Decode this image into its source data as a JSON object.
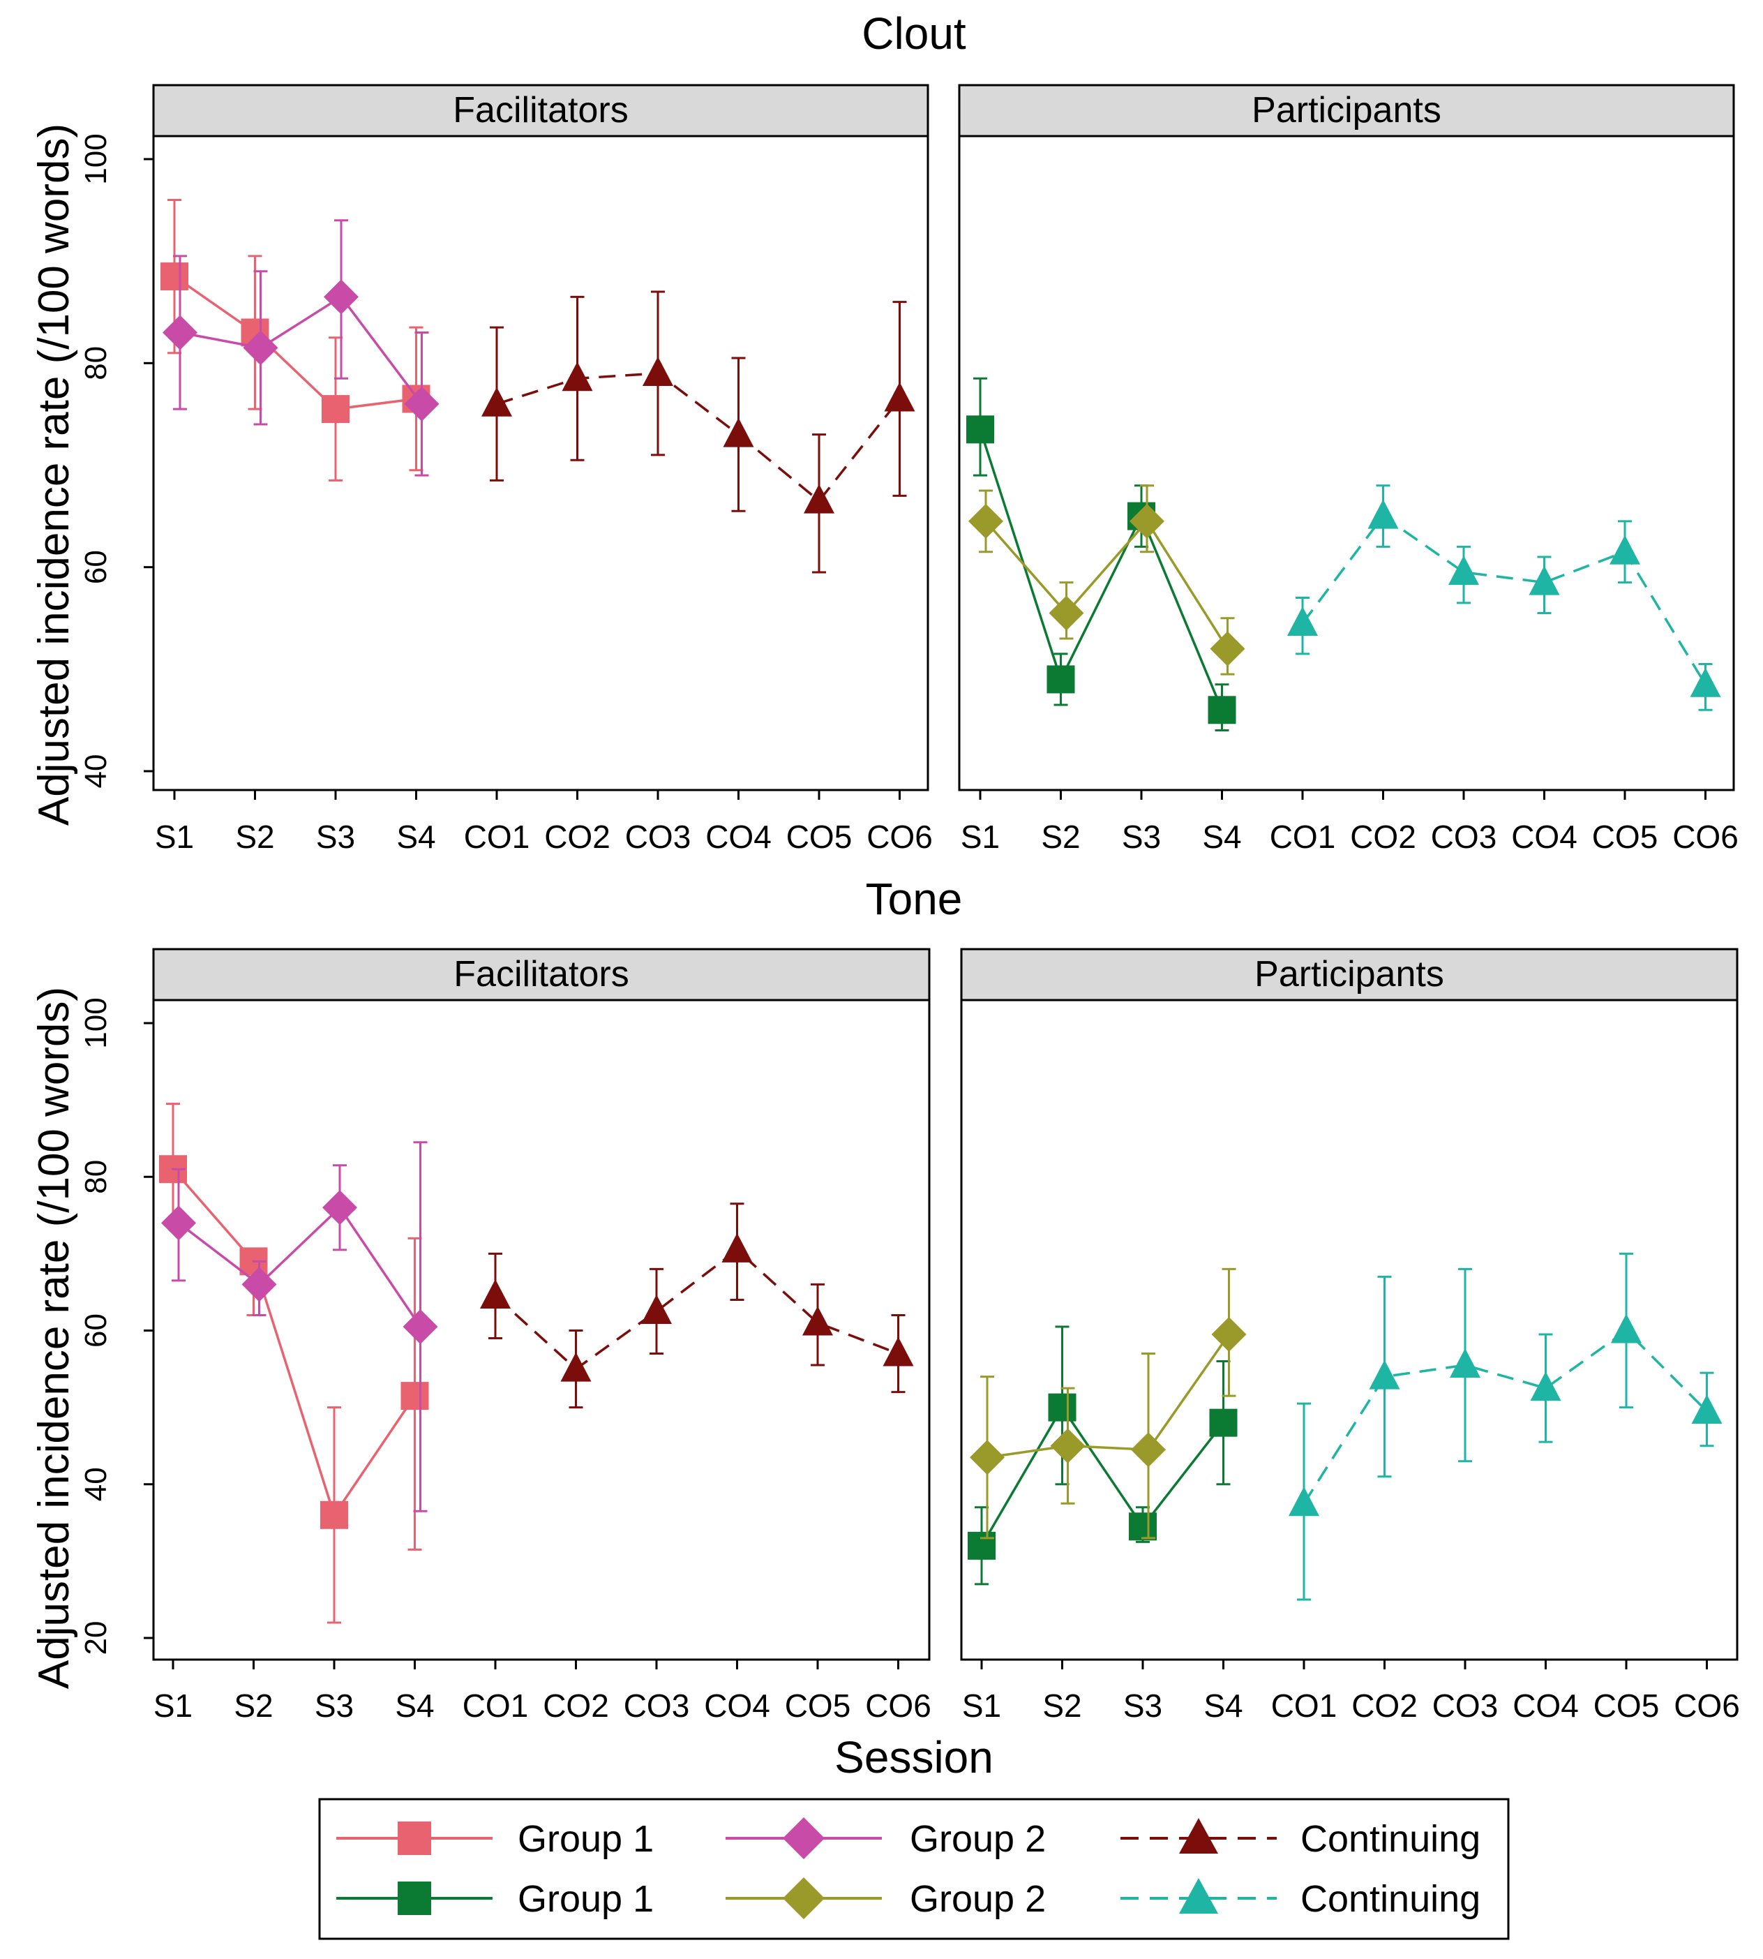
{
  "figure": {
    "xlabel": "Session",
    "ylabel": "Adjusted incidence rate (/100 words)"
  },
  "legend": {
    "items": [
      {
        "label": "Group 1",
        "color": "#E8636F",
        "marker": "square",
        "dash": false,
        "icon": "square-marker-icon"
      },
      {
        "label": "Group 2",
        "color": "#C94BA8",
        "marker": "diamond",
        "dash": false,
        "icon": "diamond-marker-icon"
      },
      {
        "label": "Continuing",
        "color": "#7B0E0A",
        "marker": "triangle",
        "dash": true,
        "icon": "triangle-marker-icon"
      },
      {
        "label": "Group 1",
        "color": "#0B7A33",
        "marker": "square",
        "dash": false,
        "icon": "square-marker-icon"
      },
      {
        "label": "Group 2",
        "color": "#9A9A2A",
        "marker": "diamond",
        "dash": false,
        "icon": "diamond-marker-icon"
      },
      {
        "label": "Continuing",
        "color": "#1FB5A4",
        "marker": "triangle",
        "dash": true,
        "icon": "triangle-marker-icon"
      }
    ]
  },
  "chart_data": [
    {
      "type": "line",
      "title": "Clout",
      "xlabel": "Session",
      "ylabel": "Adjusted incidence rate (/100 words)",
      "ylim": [
        40,
        100
      ],
      "yticks": [
        40,
        60,
        80,
        100
      ],
      "categories": [
        "S1",
        "S2",
        "S3",
        "S4",
        "CO1",
        "CO2",
        "CO3",
        "CO4",
        "CO5",
        "CO6"
      ],
      "panels": [
        {
          "label": "Facilitators",
          "series": [
            {
              "name": "Group 1",
              "color": "#E8636F",
              "marker": "square",
              "dash": false,
              "offset": 0,
              "x": [
                "S1",
                "S2",
                "S3",
                "S4"
              ],
              "y": [
                88.5,
                83,
                75.5,
                76.5
              ],
              "lo": [
                81,
                75.5,
                68.5,
                69.5
              ],
              "hi": [
                96,
                90.5,
                82.5,
                83.5
              ]
            },
            {
              "name": "Group 2",
              "color": "#C94BA8",
              "marker": "diamond",
              "dash": false,
              "offset": 8,
              "x": [
                "S1",
                "S2",
                "S3",
                "S4"
              ],
              "y": [
                83,
                81.5,
                86.5,
                76
              ],
              "lo": [
                75.5,
                74,
                78.5,
                69
              ],
              "hi": [
                90.5,
                89,
                94,
                83
              ]
            },
            {
              "name": "Continuing",
              "color": "#7B0E0A",
              "marker": "triangle",
              "dash": true,
              "offset": 0,
              "x": [
                "CO1",
                "CO2",
                "CO3",
                "CO4",
                "CO5",
                "CO6"
              ],
              "y": [
                76,
                78.5,
                79,
                73,
                66.5,
                76.5
              ],
              "lo": [
                68.5,
                70.5,
                71,
                65.5,
                59.5,
                67
              ],
              "hi": [
                83.5,
                86.5,
                87,
                80.5,
                73,
                86
              ]
            }
          ]
        },
        {
          "label": "Participants",
          "series": [
            {
              "name": "Group 1",
              "color": "#0B7A33",
              "marker": "square",
              "dash": false,
              "offset": 0,
              "x": [
                "S1",
                "S2",
                "S3",
                "S4"
              ],
              "y": [
                73.5,
                49,
                65,
                46
              ],
              "lo": [
                69,
                46.5,
                62,
                44
              ],
              "hi": [
                78.5,
                51.5,
                68,
                48.5
              ]
            },
            {
              "name": "Group 2",
              "color": "#9A9A2A",
              "marker": "diamond",
              "dash": false,
              "offset": 8,
              "x": [
                "S1",
                "S2",
                "S3",
                "S4"
              ],
              "y": [
                64.5,
                55.5,
                64.5,
                52
              ],
              "lo": [
                61.5,
                53,
                61.5,
                49.5
              ],
              "hi": [
                67.5,
                58.5,
                68,
                55
              ]
            },
            {
              "name": "Continuing",
              "color": "#1FB5A4",
              "marker": "triangle",
              "dash": true,
              "offset": 0,
              "x": [
                "CO1",
                "CO2",
                "CO3",
                "CO4",
                "CO5",
                "CO6"
              ],
              "y": [
                54.5,
                65,
                59.5,
                58.5,
                61.5,
                48.5
              ],
              "lo": [
                51.5,
                62,
                56.5,
                55.5,
                58.5,
                46
              ],
              "hi": [
                57,
                68,
                62,
                61,
                64.5,
                50.5
              ]
            }
          ]
        }
      ]
    },
    {
      "type": "line",
      "title": "Tone",
      "xlabel": "Session",
      "ylabel": "Adjusted incidence rate (/100 words)",
      "ylim": [
        20,
        100
      ],
      "yticks": [
        20,
        40,
        60,
        80,
        100
      ],
      "categories": [
        "S1",
        "S2",
        "S3",
        "S4",
        "CO1",
        "CO2",
        "CO3",
        "CO4",
        "CO5",
        "CO6"
      ],
      "panels": [
        {
          "label": "Facilitators",
          "series": [
            {
              "name": "Group 1",
              "color": "#E8636F",
              "marker": "square",
              "dash": false,
              "offset": 0,
              "x": [
                "S1",
                "S2",
                "S3",
                "S4"
              ],
              "y": [
                81,
                69,
                36,
                51.5
              ],
              "lo": [
                73.5,
                62,
                22,
                31.5
              ],
              "hi": [
                89.5,
                70,
                50,
                72
              ]
            },
            {
              "name": "Group 2",
              "color": "#C94BA8",
              "marker": "diamond",
              "dash": false,
              "offset": 8,
              "x": [
                "S1",
                "S2",
                "S3",
                "S4"
              ],
              "y": [
                74,
                66,
                76,
                60.5
              ],
              "lo": [
                66.5,
                62,
                70.5,
                36.5
              ],
              "hi": [
                81,
                69,
                81.5,
                84.5
              ]
            },
            {
              "name": "Continuing",
              "color": "#7B0E0A",
              "marker": "triangle",
              "dash": true,
              "offset": 0,
              "x": [
                "CO1",
                "CO2",
                "CO3",
                "CO4",
                "CO5",
                "CO6"
              ],
              "y": [
                64.5,
                55,
                62.5,
                70.5,
                61,
                57
              ],
              "lo": [
                59,
                50,
                57,
                64,
                55.5,
                52
              ],
              "hi": [
                70,
                60,
                68,
                76.5,
                66,
                62
              ]
            }
          ]
        },
        {
          "label": "Participants",
          "series": [
            {
              "name": "Group 1",
              "color": "#0B7A33",
              "marker": "square",
              "dash": false,
              "offset": 0,
              "x": [
                "S1",
                "S2",
                "S3",
                "S4"
              ],
              "y": [
                32,
                50,
                34.5,
                48
              ],
              "lo": [
                27,
                40,
                32.5,
                40
              ],
              "hi": [
                37,
                60.5,
                37,
                56
              ]
            },
            {
              "name": "Group 2",
              "color": "#9A9A2A",
              "marker": "diamond",
              "dash": false,
              "offset": 8,
              "x": [
                "S1",
                "S2",
                "S3",
                "S4"
              ],
              "y": [
                43.5,
                45,
                44.5,
                59.5
              ],
              "lo": [
                33,
                37.5,
                33,
                51.5
              ],
              "hi": [
                54,
                52.5,
                57,
                68
              ]
            },
            {
              "name": "Continuing",
              "color": "#1FB5A4",
              "marker": "triangle",
              "dash": true,
              "offset": 0,
              "x": [
                "CO1",
                "CO2",
                "CO3",
                "CO4",
                "CO5",
                "CO6"
              ],
              "y": [
                37.5,
                54,
                55.5,
                52.5,
                60,
                49.5
              ],
              "lo": [
                25,
                41,
                43,
                45.5,
                50,
                45
              ],
              "hi": [
                50.5,
                67,
                68,
                59.5,
                70,
                54.5
              ]
            }
          ]
        }
      ]
    }
  ]
}
